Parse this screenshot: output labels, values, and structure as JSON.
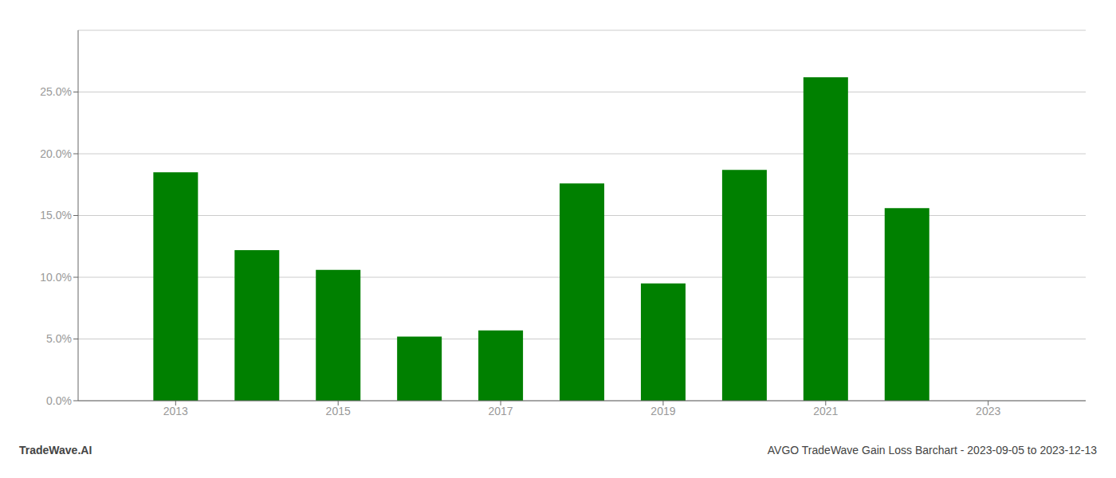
{
  "chart_data": {
    "type": "bar",
    "x": [
      2013,
      2014,
      2015,
      2016,
      2017,
      2018,
      2019,
      2020,
      2021,
      2022
    ],
    "values": [
      0.185,
      0.122,
      0.106,
      0.052,
      0.057,
      0.176,
      0.095,
      0.187,
      0.262,
      0.156
    ],
    "color": "#008000",
    "xlim": [
      2011.8,
      2024.2
    ],
    "xticks": [
      2013,
      2015,
      2017,
      2019,
      2021,
      2023
    ],
    "ylim": [
      0,
      0.3
    ],
    "yticks": [
      {
        "value": 0.0,
        "label": "0.0%"
      },
      {
        "value": 0.05,
        "label": "5.0%"
      },
      {
        "value": 0.1,
        "label": "10.0%"
      },
      {
        "value": 0.15,
        "label": "15.0%"
      },
      {
        "value": 0.2,
        "label": "20.0%"
      },
      {
        "value": 0.25,
        "label": "25.0%"
      }
    ],
    "grid": true,
    "annotations": [
      "TradeWave.AI",
      "AVGO TradeWave Gain Loss Barchart - 2023-09-05 to 2023-12-13"
    ]
  }
}
